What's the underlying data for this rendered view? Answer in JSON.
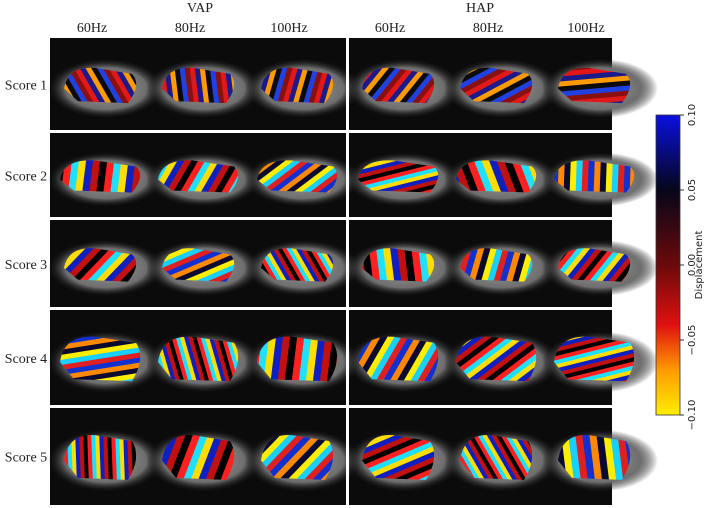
{
  "header": {
    "groups": [
      "VAP",
      "HAP"
    ],
    "frequencies": [
      "60Hz",
      "80Hz",
      "100Hz",
      "60Hz",
      "80Hz",
      "100Hz"
    ]
  },
  "rows": [
    "Score 1",
    "Score 2",
    "Score 3",
    "Score 4",
    "Score 5"
  ],
  "colorbar": {
    "label": "Displacement",
    "lim": [
      -0.1,
      0.1
    ],
    "ticks": [
      {
        "value": 0.1,
        "label": "0.10"
      },
      {
        "value": 0.05,
        "label": "0.05"
      },
      {
        "value": 0.0,
        "label": "0.00"
      },
      {
        "value": -0.05,
        "label": "−0.05"
      },
      {
        "value": -0.1,
        "label": "−0.10"
      }
    ]
  }
}
